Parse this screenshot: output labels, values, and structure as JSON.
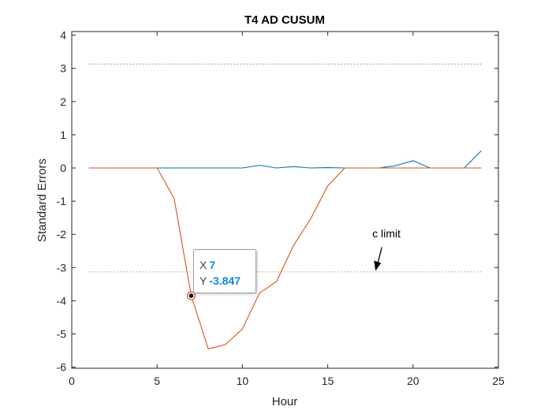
{
  "chart_data": {
    "type": "line",
    "title": "T4 AD CUSUM",
    "xlabel": "Hour",
    "ylabel": "Standard Errors",
    "xlim": [
      0,
      25
    ],
    "ylim": [
      -6,
      4.2
    ],
    "xticks": [
      "0",
      "5",
      "10",
      "15",
      "20",
      "25"
    ],
    "yticks": [
      "4",
      "3",
      "2",
      "1",
      "0",
      "-1",
      "-2",
      "-3",
      "-4",
      "-5",
      "-6"
    ],
    "grid": false,
    "x": [
      1,
      2,
      3,
      4,
      5,
      6,
      7,
      8,
      9,
      10,
      11,
      12,
      13,
      14,
      15,
      16,
      17,
      18,
      19,
      20,
      21,
      22,
      23,
      24
    ],
    "series": [
      {
        "color": "#0072bd",
        "values": [
          0,
          0,
          0,
          0,
          0,
          0,
          0,
          0,
          0,
          0,
          0.08,
          0,
          0.04,
          0,
          0.01,
          0,
          0,
          0,
          0.07,
          0.22,
          0,
          0,
          0,
          0.52
        ]
      },
      {
        "color": "#d95319",
        "values": [
          0,
          0,
          0,
          0,
          0,
          -0.92,
          -3.847,
          -5.45,
          -5.32,
          -4.85,
          -3.77,
          -3.42,
          -2.33,
          -1.53,
          -0.54,
          0,
          0,
          0,
          0,
          0,
          0,
          0,
          0,
          0
        ]
      }
    ],
    "limits": [
      {
        "value": 3.13,
        "color": "#4db3a5",
        "style": "dotted"
      },
      {
        "value": -3.13,
        "color": "#f0a050",
        "style": "dotted"
      }
    ],
    "annotation": {
      "text": "c limit",
      "x": 18,
      "y": -2.5,
      "arrow_to": [
        17.8,
        -3.1
      ]
    },
    "datatip": {
      "x_label": "X",
      "x_value": "7",
      "y_label": "Y",
      "y_value": "-3.847",
      "point": [
        7,
        -3.847
      ]
    }
  }
}
